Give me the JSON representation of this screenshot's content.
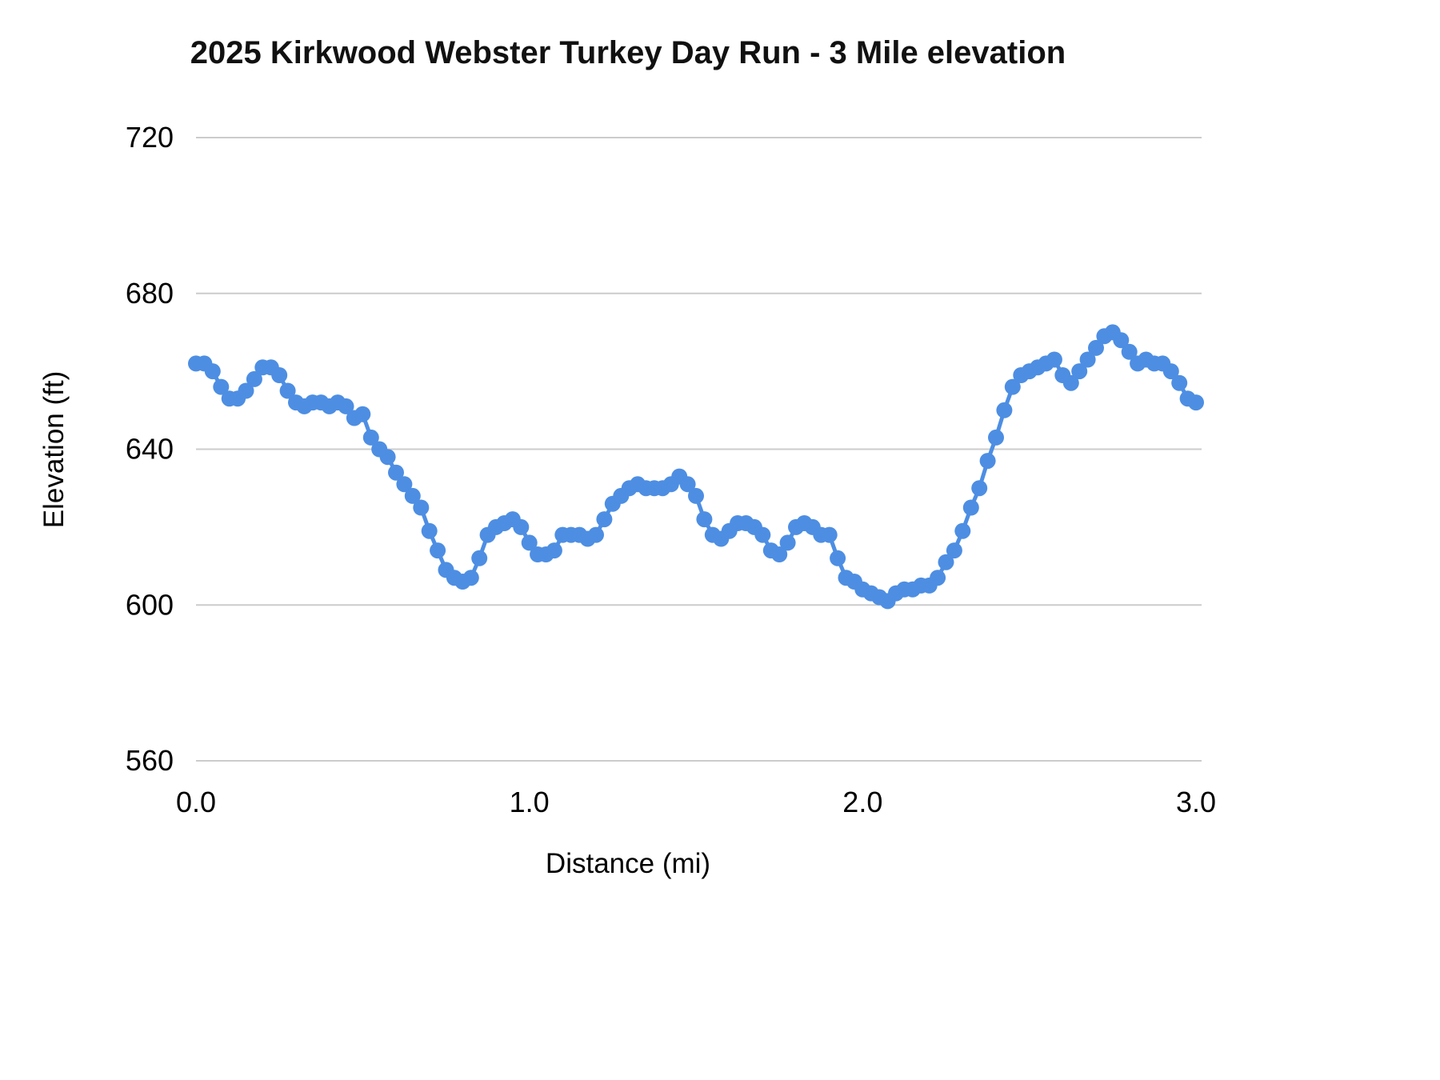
{
  "chart": {
    "title": "2025 Kirkwood Webster Turkey Day Run - 3 Mile elevation",
    "x_axis_title": "Distance (mi)",
    "y_axis_title": "Elevation (ft)"
  },
  "colors": {
    "series": "#4d8ee3",
    "gridline": "#cccccc",
    "text": "#000000",
    "background": "#ffffff"
  },
  "chart_data": {
    "type": "line",
    "title": "2025 Kirkwood Webster Turkey Day Run - 3 Mile elevation",
    "xlabel": "Distance (mi)",
    "ylabel": "Elevation (ft)",
    "xlim": [
      0.0,
      3.0
    ],
    "ylim": [
      560,
      720
    ],
    "y_ticks": [
      560,
      600,
      640,
      680,
      720
    ],
    "x_ticks": [
      {
        "value": 0.0,
        "label": "0.0"
      },
      {
        "value": 1.0,
        "label": "1.0"
      },
      {
        "value": 2.0,
        "label": "2.0"
      },
      {
        "value": 3.0,
        "label": "3.0"
      }
    ],
    "grid": "horizontal",
    "legend": "none",
    "marker": "circle",
    "series_name": "Elevation (ft)",
    "x_units": "miles",
    "x_spacing_note": "uniform 0.025 mi spacing from 0.0 to 3.0",
    "x": [
      0,
      0.025,
      0.05,
      0.075,
      0.1,
      0.125,
      0.15,
      0.175,
      0.2,
      0.225,
      0.25,
      0.275,
      0.3,
      0.325,
      0.35,
      0.375,
      0.4,
      0.425,
      0.45,
      0.475,
      0.5,
      0.525,
      0.55,
      0.575,
      0.6,
      0.625,
      0.65,
      0.675,
      0.7,
      0.725,
      0.75,
      0.775,
      0.8,
      0.825,
      0.85,
      0.875,
      0.9,
      0.925,
      0.95,
      0.975,
      1,
      1.025,
      1.05,
      1.075,
      1.1,
      1.125,
      1.15,
      1.175,
      1.2,
      1.225,
      1.25,
      1.275,
      1.3,
      1.325,
      1.35,
      1.375,
      1.4,
      1.425,
      1.45,
      1.475,
      1.5,
      1.525,
      1.55,
      1.575,
      1.6,
      1.625,
      1.65,
      1.675,
      1.7,
      1.725,
      1.75,
      1.775,
      1.8,
      1.825,
      1.85,
      1.875,
      1.9,
      1.925,
      1.95,
      1.975,
      2,
      2.025,
      2.05,
      2.075,
      2.1,
      2.125,
      2.15,
      2.175,
      2.2,
      2.225,
      2.25,
      2.275,
      2.3,
      2.325,
      2.35,
      2.375,
      2.4,
      2.425,
      2.45,
      2.475,
      2.5,
      2.525,
      2.55,
      2.575,
      2.6,
      2.625,
      2.65,
      2.675,
      2.7,
      2.725,
      2.75,
      2.775,
      2.8,
      2.825,
      2.85,
      2.875,
      2.9,
      2.925,
      2.95,
      2.975,
      3
    ],
    "values": [
      662,
      662,
      660,
      656,
      653,
      653,
      655,
      658,
      661,
      661,
      659,
      655,
      652,
      651,
      652,
      652,
      651,
      652,
      651,
      648,
      649,
      643,
      640,
      638,
      634,
      631,
      628,
      625,
      619,
      614,
      609,
      607,
      606,
      607,
      612,
      618,
      620,
      621,
      622,
      620,
      616,
      613,
      613,
      614,
      618,
      618,
      618,
      617,
      618,
      622,
      626,
      628,
      630,
      631,
      630,
      630,
      630,
      631,
      633,
      631,
      628,
      622,
      618,
      617,
      619,
      621,
      621,
      620,
      618,
      614,
      613,
      616,
      620,
      621,
      620,
      618,
      618,
      612,
      607,
      606,
      604,
      603,
      602,
      601,
      603,
      604,
      604,
      605,
      605,
      607,
      611,
      614,
      619,
      625,
      630,
      637,
      643,
      650,
      656,
      659,
      660,
      661,
      662,
      663,
      659,
      657,
      660,
      663,
      666,
      669,
      670,
      668,
      665,
      662,
      663,
      662,
      662,
      660,
      657,
      653,
      652
    ]
  }
}
